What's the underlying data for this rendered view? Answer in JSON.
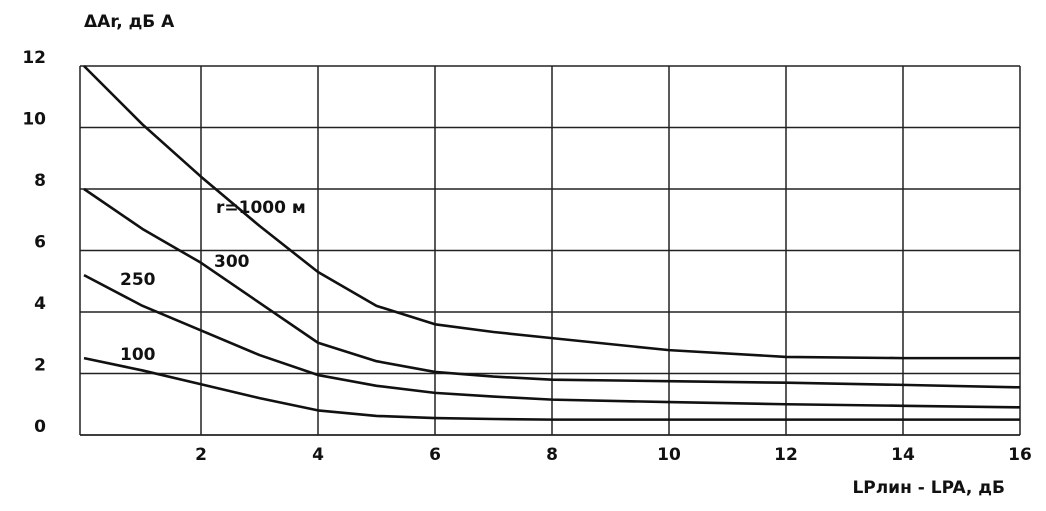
{
  "chart_data": {
    "type": "line",
    "y_label": "ΔAr, дБ А",
    "x_label": "LPлин - LPA, дБ",
    "x": [
      0,
      1,
      2,
      3,
      4,
      5,
      6,
      7,
      8,
      10,
      12,
      14,
      16
    ],
    "series": [
      {
        "name": "r=1000 м",
        "color": "#111111",
        "values": [
          12,
          10.1,
          8.4,
          6.8,
          5.3,
          4.2,
          3.6,
          3.35,
          3.15,
          2.76,
          2.54,
          2.5,
          2.5
        ]
      },
      {
        "name": "300",
        "color": "#111111",
        "values": [
          8.0,
          6.7,
          5.6,
          4.3,
          3.0,
          2.4,
          2.05,
          1.9,
          1.8,
          1.75,
          1.7,
          1.63,
          1.55
        ]
      },
      {
        "name": "250",
        "color": "#111111",
        "values": [
          5.2,
          4.2,
          3.4,
          2.6,
          1.95,
          1.6,
          1.37,
          1.25,
          1.15,
          1.07,
          1.0,
          0.95,
          0.9
        ]
      },
      {
        "name": "100",
        "color": "#111111",
        "values": [
          2.5,
          2.1,
          1.65,
          1.2,
          0.8,
          0.62,
          0.55,
          0.52,
          0.5,
          0.5,
          0.5,
          0.5,
          0.5
        ]
      }
    ],
    "xlim": [
      0,
      16
    ],
    "xticks": [
      2,
      4,
      6,
      8,
      10,
      12,
      14,
      16
    ],
    "ylim": [
      0,
      12
    ],
    "yticks": [
      0,
      2,
      4,
      6,
      8,
      10,
      12
    ],
    "grid": true
  }
}
